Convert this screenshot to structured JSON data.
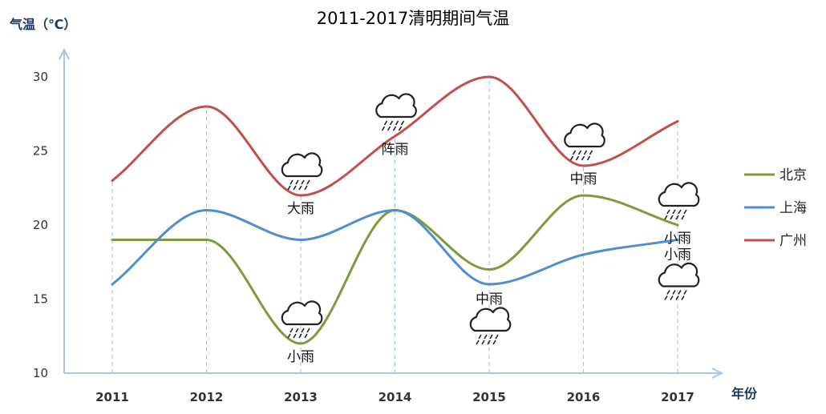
{
  "chart_data": {
    "type": "line",
    "title": "2011-2017清明期间气温",
    "ylabel": "气温（℃）",
    "xlabel": "年份",
    "ylim": [
      10,
      32
    ],
    "yticks": [
      10,
      15,
      20,
      25,
      30
    ],
    "categories": [
      "2011",
      "2012",
      "2013",
      "2014",
      "2015",
      "2016",
      "2017"
    ],
    "grid": "vertical-dashed",
    "legend_position": "right",
    "series": [
      {
        "name": "北京",
        "color": "#7f9a3b",
        "values": [
          19,
          19,
          12,
          21,
          17,
          22,
          20
        ]
      },
      {
        "name": "上海",
        "color": "#4f8fcf",
        "values": [
          16,
          21,
          19,
          21,
          16,
          18,
          19
        ]
      },
      {
        "name": "广州",
        "color": "#c0504d",
        "values": [
          23,
          28,
          22,
          26,
          30,
          24,
          27
        ]
      }
    ],
    "weather_annotations": [
      {
        "category": "2013",
        "value": 22,
        "text": "大雨",
        "icon": "rain-cloud-icon",
        "placement": "above-text-below"
      },
      {
        "category": "2013",
        "value": 12,
        "text": "小雨",
        "icon": "rain-cloud-icon",
        "placement": "above-text-below"
      },
      {
        "category": "2014",
        "value": 26,
        "text": "阵雨",
        "icon": "rain-cloud-icon",
        "placement": "above-text-below"
      },
      {
        "category": "2015",
        "value": 16,
        "text": "中雨",
        "icon": "rain-cloud-icon",
        "placement": "below-text-above"
      },
      {
        "category": "2016",
        "value": 24,
        "text": "中雨",
        "icon": "rain-cloud-icon",
        "placement": "above-text-below"
      },
      {
        "category": "2017",
        "value": 20,
        "text": "小雨",
        "icon": "rain-cloud-icon",
        "placement": "above-text-below"
      },
      {
        "category": "2017",
        "value": 19,
        "text": "小雨",
        "icon": "rain-cloud-icon",
        "placement": "below-text-above"
      }
    ]
  }
}
